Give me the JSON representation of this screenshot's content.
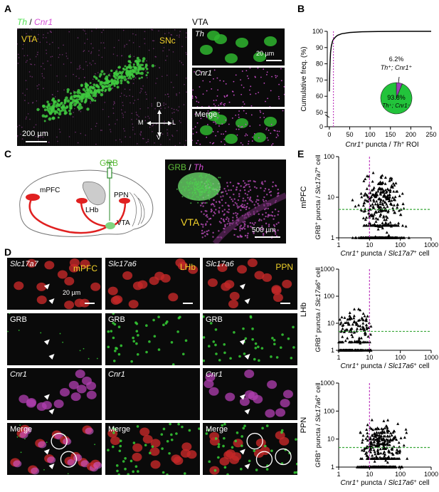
{
  "panels": {
    "A": "A",
    "B": "B",
    "C": "C",
    "D": "D",
    "E": "E"
  },
  "panelA": {
    "title_th": "Th",
    "title_sep": " / ",
    "title_cnr1": "Cnr1",
    "vta": "VTA",
    "snc": "SNc",
    "scale": "200 µm",
    "compass": {
      "d": "D",
      "v": "V",
      "m": "M",
      "l": "L"
    },
    "inset_title": "VTA",
    "inset_labels": [
      "Th",
      "Cnr1",
      "Merge"
    ],
    "inset_scale": "20 µm"
  },
  "panelB": {
    "chart_data": {
      "type": "line",
      "xlabel_parts": [
        "Cnr1",
        "+",
        " puncta / ",
        "Th",
        "+",
        " ROI"
      ],
      "ylabel": "Cumulative freq. (%)",
      "xticks": [
        0,
        50,
        100,
        150,
        200,
        250
      ],
      "yticks": [
        0,
        50,
        60,
        70,
        80,
        90,
        100
      ],
      "xlim": [
        -5,
        250
      ],
      "series": [
        {
          "x": [
            0,
            1,
            2,
            3,
            5,
            8,
            10,
            15,
            20,
            30,
            50,
            80,
            120,
            180,
            250
          ],
          "y": [
            63,
            75,
            82,
            87,
            91,
            94,
            95,
            96.5,
            97.5,
            98.5,
            99.3,
            99.7,
            99.9,
            100,
            100
          ]
        }
      ],
      "threshold_x": 10,
      "pie": {
        "slices": [
          {
            "label": "Th+; Cnr1+",
            "value": 6.2
          },
          {
            "label": "Th+; Cnr1−",
            "value": 93.8
          }
        ],
        "label_small": "6.2%",
        "label_small_sub": "Th⁺; Cnr1⁺",
        "label_large": "93.8%",
        "label_large_sub": "Th⁺; Cnr1⁻",
        "colors": [
          "#9b3fb3",
          "#22c33b"
        ]
      }
    }
  },
  "panelC": {
    "grb": "GRB",
    "mpfc": "mPFC",
    "lhb": "LHb",
    "ppn": "PPN",
    "vta": "VTA",
    "micro_title_grb": "GRB",
    "micro_title_sep": " / ",
    "micro_title_th": "Th",
    "micro_vta": "VTA",
    "micro_scale": "500 µm"
  },
  "panelD": {
    "col_genes": [
      "Slc17a7",
      "Slc17a6",
      "Slc17a6"
    ],
    "col_regions": [
      "mPFC",
      "LHb",
      "PPN"
    ],
    "row_labels": [
      "GRB",
      "Cnr1",
      "Merge"
    ],
    "scale": "20 µm"
  },
  "panelE": {
    "charts": [
      {
        "type": "scatter",
        "region": "mPFC",
        "ylabel_parts": [
          "GRB",
          "+",
          " puncta / ",
          "Slc17a7",
          "+",
          " cell"
        ],
        "xlabel_parts": [
          "Cnr1",
          "+",
          " puncta / ",
          "Slc17a7",
          "+",
          " cell"
        ],
        "xticks": [
          1,
          10,
          100,
          1000
        ],
        "yticks": [
          1,
          10,
          100
        ],
        "xlim": [
          1,
          1000
        ],
        "ylim": [
          1,
          100
        ],
        "threshold_x": 10,
        "threshold_y": 5
      },
      {
        "type": "scatter",
        "region": "LHb",
        "ylabel_parts": [
          "GRB",
          "+",
          " puncta / ",
          "Slc17a6",
          "+",
          " cell"
        ],
        "xlabel_parts": [
          "Cnr1",
          "+",
          " puncta / ",
          "Slc17a6",
          "+",
          " cell"
        ],
        "xticks": [
          1,
          10,
          100,
          1000
        ],
        "yticks": [
          1,
          10,
          100,
          1000
        ],
        "xlim": [
          1,
          1000
        ],
        "ylim": [
          1,
          1000
        ],
        "threshold_x": 10,
        "threshold_y": 5
      },
      {
        "type": "scatter",
        "region": "PPN",
        "ylabel_parts": [
          "GRB",
          "+",
          " puncta / ",
          "Slc17a6",
          "+",
          " cell"
        ],
        "xlabel_parts": [
          "Cnr1",
          "+",
          " puncta / ",
          "Slc17a6",
          "+",
          " cell"
        ],
        "xticks": [
          1,
          10,
          100,
          1000
        ],
        "yticks": [
          1,
          10,
          100,
          1000
        ],
        "xlim": [
          1,
          1000
        ],
        "ylim": [
          1,
          1000
        ],
        "threshold_x": 10,
        "threshold_y": 5
      }
    ]
  }
}
